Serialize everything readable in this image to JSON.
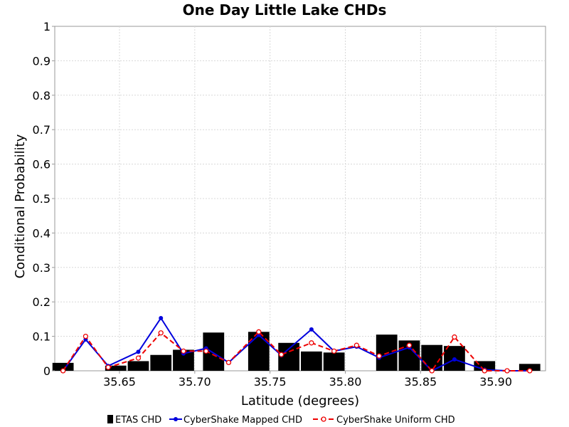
{
  "chart_data": {
    "type": "bar",
    "title": "One Day Little Lake CHDs",
    "xlabel": "Latitude (degrees)",
    "ylabel": "Conditional Probability",
    "xlim": [
      35.607,
      35.933
    ],
    "ylim": [
      0,
      1
    ],
    "xticks": [
      "35.65",
      "35.70",
      "35.75",
      "35.80",
      "35.85",
      "35.90"
    ],
    "yticks": [
      "0",
      "0.1",
      "0.2",
      "0.3",
      "0.4",
      "0.5",
      "0.6",
      "0.7",
      "0.8",
      "0.9",
      "1"
    ],
    "grid": true,
    "legend_position": "bottom",
    "bar_width": 0.015,
    "bars": {
      "name": "ETAS CHD",
      "color": "#000000",
      "x": [
        35.6125,
        35.6475,
        35.6625,
        35.6775,
        35.6925,
        35.7125,
        35.7425,
        35.7625,
        35.7775,
        35.7925,
        35.8275,
        35.8425,
        35.8575,
        35.8725,
        35.8925,
        35.9225
      ],
      "values": [
        0.023,
        0.015,
        0.028,
        0.046,
        0.061,
        0.111,
        0.113,
        0.081,
        0.056,
        0.053,
        0.105,
        0.088,
        0.075,
        0.072,
        0.028,
        0.02
      ]
    },
    "series": [
      {
        "name": "CyberShake Mapped CHD",
        "color": "#0000dd",
        "style": "solid",
        "marker": "filled-circle",
        "x": [
          35.6125,
          35.6275,
          35.6425,
          35.6625,
          35.6775,
          35.6925,
          35.7075,
          35.7225,
          35.7425,
          35.7575,
          35.7775,
          35.7925,
          35.8075,
          35.8225,
          35.8425,
          35.8575,
          35.8725,
          35.8925,
          35.9075,
          35.9225
        ],
        "values": [
          0.0,
          0.091,
          0.014,
          0.055,
          0.153,
          0.05,
          0.065,
          0.024,
          0.104,
          0.045,
          0.12,
          0.057,
          0.07,
          0.038,
          0.068,
          0.0,
          0.033,
          0.003,
          0.0,
          0.0
        ]
      },
      {
        "name": "CyberShake Uniform CHD",
        "color": "#ee0000",
        "style": "dashed",
        "marker": "open-circle",
        "x": [
          35.6125,
          35.6275,
          35.6425,
          35.6625,
          35.6775,
          35.6925,
          35.7075,
          35.7225,
          35.7425,
          35.7575,
          35.7775,
          35.7925,
          35.8075,
          35.8225,
          35.8425,
          35.8575,
          35.8725,
          35.8925,
          35.9075,
          35.9225
        ],
        "values": [
          0.0,
          0.1,
          0.01,
          0.037,
          0.11,
          0.057,
          0.057,
          0.024,
          0.113,
          0.047,
          0.081,
          0.057,
          0.074,
          0.043,
          0.074,
          0.0,
          0.098,
          0.0,
          0.0,
          0.0
        ]
      }
    ]
  }
}
